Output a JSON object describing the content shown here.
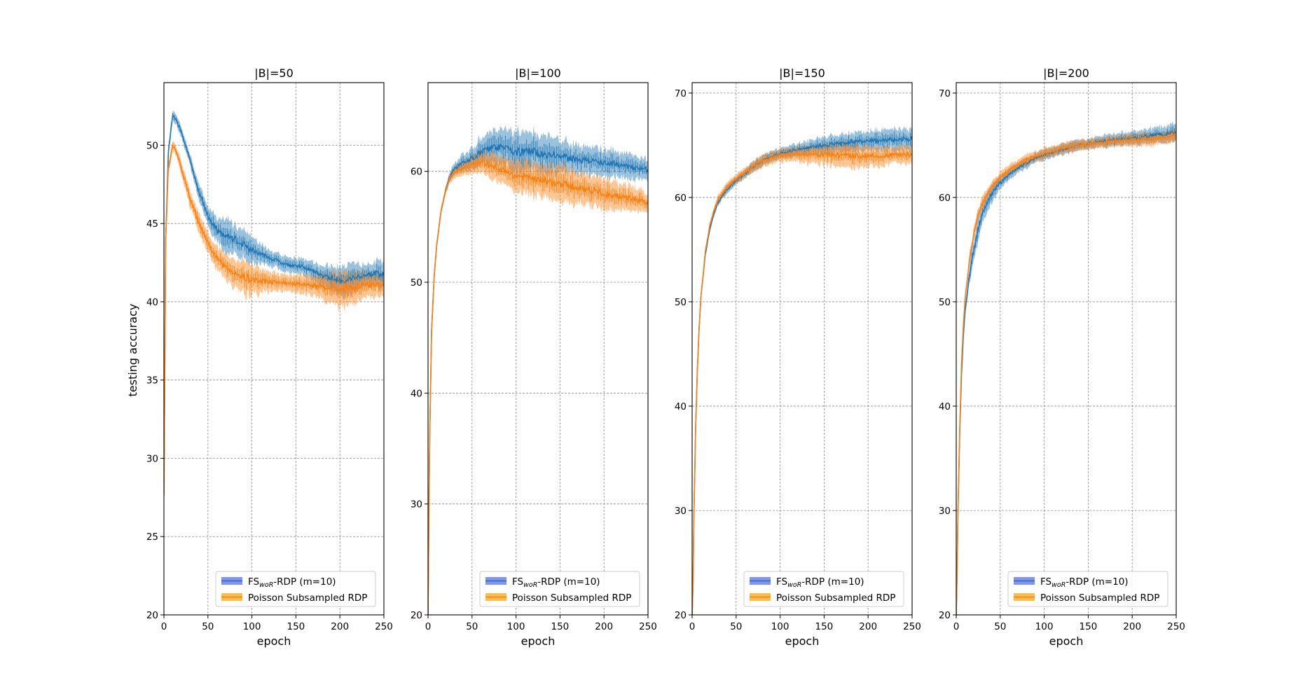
{
  "figure": {
    "ylabel": "testing accuracy",
    "xlabel": "epoch"
  },
  "series_styles": [
    {
      "name": "FSwoR-RDP (m=10)",
      "color": "#1f77b4",
      "legend_patch": "#6f7ff0"
    },
    {
      "name": "Poisson Subsampled RDP",
      "color": "#ff7f0e",
      "legend_patch": "#ffb02e"
    }
  ],
  "legend": {
    "fs_prefix": "FS",
    "fs_subscript": "woR",
    "fs_suffix": "-RDP (m=10)",
    "poisson": "Poisson Subsampled RDP",
    "location": "lower-right"
  },
  "chart_data": [
    {
      "type": "line",
      "title": "|B|=50",
      "xlabel": "epoch",
      "ylabel": "testing accuracy",
      "xlim": [
        0,
        250
      ],
      "ylim": [
        20,
        54
      ],
      "xticks": [
        0,
        50,
        100,
        150,
        200,
        250
      ],
      "yticks": [
        20,
        25,
        30,
        35,
        40,
        45,
        50
      ],
      "grid": true,
      "series": [
        {
          "name": "FSwoR-RDP (m=10)",
          "x": [
            0,
            2,
            5,
            10,
            15,
            20,
            30,
            40,
            50,
            60,
            70,
            80,
            90,
            100,
            120,
            140,
            160,
            180,
            200,
            220,
            240,
            250
          ],
          "y": [
            27.8,
            44,
            49.5,
            52,
            51.5,
            50.8,
            49,
            47,
            45.5,
            44.6,
            44.2,
            44,
            43.7,
            43.3,
            42.8,
            42.4,
            42.2,
            41.7,
            41.3,
            41.6,
            41.8,
            41.7
          ],
          "band": [
            0.3,
            0.4,
            0.4,
            0.3,
            0.3,
            0.3,
            0.4,
            0.5,
            0.6,
            0.8,
            1.0,
            1.0,
            0.9,
            0.8,
            0.5,
            0.5,
            0.5,
            0.6,
            1.0,
            0.8,
            0.8,
            0.8
          ]
        },
        {
          "name": "Poisson Subsampled RDP",
          "x": [
            0,
            2,
            5,
            10,
            15,
            20,
            30,
            40,
            50,
            60,
            70,
            80,
            90,
            100,
            120,
            140,
            160,
            180,
            200,
            220,
            240,
            250
          ],
          "y": [
            27.6,
            44,
            48.5,
            50,
            49.5,
            48.5,
            46.5,
            45,
            43.7,
            42.8,
            42.2,
            41.9,
            41.6,
            41.4,
            41.3,
            41.2,
            41.1,
            41.0,
            40.8,
            41.0,
            41.1,
            41.0
          ],
          "band": [
            0.3,
            0.4,
            0.4,
            0.3,
            0.3,
            0.4,
            0.5,
            0.6,
            0.6,
            0.7,
            0.8,
            0.9,
            1.1,
            1.0,
            0.6,
            0.5,
            0.6,
            0.8,
            1.1,
            0.9,
            0.8,
            0.8
          ]
        }
      ]
    },
    {
      "type": "line",
      "title": "|B|=100",
      "xlabel": "epoch",
      "ylabel": "",
      "xlim": [
        0,
        250
      ],
      "ylim": [
        20,
        68
      ],
      "xticks": [
        0,
        50,
        100,
        150,
        200,
        250
      ],
      "yticks": [
        20,
        30,
        40,
        50,
        60
      ],
      "grid": true,
      "series": [
        {
          "name": "FSwoR-RDP (m=10)",
          "x": [
            0,
            1,
            2,
            4,
            7,
            10,
            15,
            20,
            25,
            30,
            40,
            50,
            60,
            70,
            80,
            90,
            100,
            120,
            140,
            160,
            180,
            200,
            220,
            240,
            250
          ],
          "y": [
            20,
            29.5,
            36.5,
            45.5,
            50.5,
            53.5,
            56.5,
            58.3,
            59.5,
            60.2,
            60.8,
            61.2,
            61.7,
            62.1,
            62.2,
            62.0,
            61.8,
            61.7,
            61.5,
            61.2,
            61.0,
            60.8,
            60.6,
            60.3,
            60.1
          ],
          "band": [
            0,
            0.3,
            0.3,
            0.3,
            0.3,
            0.3,
            0.3,
            0.3,
            0.4,
            0.5,
            0.7,
            0.9,
            1.2,
            1.4,
            1.5,
            1.6,
            1.7,
            1.8,
            1.6,
            1.4,
            1.3,
            1.2,
            1.1,
            1.0,
            0.9
          ]
        },
        {
          "name": "Poisson Subsampled RDP",
          "x": [
            0,
            1,
            2,
            4,
            7,
            10,
            15,
            20,
            25,
            30,
            40,
            50,
            60,
            70,
            80,
            90,
            100,
            120,
            140,
            160,
            180,
            200,
            220,
            240,
            250
          ],
          "y": [
            20,
            29.5,
            36.5,
            45.5,
            50.5,
            53.5,
            56.5,
            58.3,
            59.4,
            59.9,
            60.3,
            60.6,
            60.8,
            60.6,
            60.3,
            59.9,
            59.6,
            59.3,
            59.0,
            58.7,
            58.4,
            58.0,
            57.7,
            57.4,
            57.2
          ],
          "band": [
            0,
            0.3,
            0.3,
            0.3,
            0.3,
            0.3,
            0.3,
            0.3,
            0.4,
            0.5,
            0.6,
            0.8,
            1.0,
            1.1,
            1.2,
            1.3,
            1.4,
            1.5,
            1.5,
            1.5,
            1.4,
            1.3,
            1.2,
            1.0,
            0.9
          ]
        }
      ]
    },
    {
      "type": "line",
      "title": "|B|=150",
      "xlabel": "epoch",
      "ylabel": "",
      "xlim": [
        0,
        250
      ],
      "ylim": [
        20,
        71
      ],
      "xticks": [
        0,
        50,
        100,
        150,
        200,
        250
      ],
      "yticks": [
        20,
        30,
        40,
        50,
        60,
        70
      ],
      "grid": true,
      "series": [
        {
          "name": "FSwoR-RDP (m=10)",
          "x": [
            0,
            1,
            2,
            4,
            6,
            8,
            10,
            15,
            20,
            25,
            30,
            40,
            50,
            60,
            70,
            80,
            90,
            100,
            120,
            140,
            160,
            180,
            200,
            220,
            240,
            250
          ],
          "y": [
            20,
            23,
            29.5,
            38,
            43.5,
            47.5,
            50.5,
            54.5,
            57.0,
            58.5,
            59.6,
            60.8,
            61.6,
            62.3,
            63.0,
            63.5,
            63.9,
            64.2,
            64.6,
            64.9,
            65.1,
            65.3,
            65.4,
            65.5,
            65.6,
            65.6
          ],
          "band": [
            0,
            0.3,
            0.3,
            0.3,
            0.3,
            0.3,
            0.3,
            0.3,
            0.3,
            0.3,
            0.3,
            0.4,
            0.4,
            0.4,
            0.5,
            0.5,
            0.5,
            0.5,
            0.6,
            0.7,
            0.8,
            0.9,
            0.9,
            1.0,
            1.0,
            1.0
          ]
        },
        {
          "name": "Poisson Subsampled RDP",
          "x": [
            0,
            1,
            2,
            4,
            6,
            8,
            10,
            15,
            20,
            25,
            30,
            40,
            50,
            60,
            70,
            80,
            90,
            100,
            120,
            140,
            160,
            180,
            200,
            220,
            240,
            250
          ],
          "y": [
            20,
            23,
            29.5,
            38,
            43.5,
            47.5,
            50.5,
            54.8,
            57.3,
            58.8,
            59.9,
            61.0,
            61.8,
            62.4,
            63.0,
            63.5,
            63.8,
            64.0,
            64.1,
            64.1,
            64.1,
            64.0,
            64.0,
            64.0,
            64.1,
            64.1
          ],
          "band": [
            0,
            0.3,
            0.3,
            0.3,
            0.3,
            0.3,
            0.3,
            0.3,
            0.3,
            0.3,
            0.4,
            0.4,
            0.4,
            0.5,
            0.5,
            0.6,
            0.6,
            0.6,
            0.7,
            0.9,
            1.0,
            1.1,
            1.0,
            0.9,
            0.8,
            0.8
          ]
        }
      ]
    },
    {
      "type": "line",
      "title": "|B|=200",
      "xlabel": "epoch",
      "ylabel": "",
      "xlim": [
        0,
        250
      ],
      "ylim": [
        20,
        71
      ],
      "xticks": [
        0,
        50,
        100,
        150,
        200,
        250
      ],
      "yticks": [
        20,
        30,
        40,
        50,
        60,
        70
      ],
      "grid": true,
      "series": [
        {
          "name": "FSwoR-RDP (m=10)",
          "x": [
            0,
            1,
            2,
            4,
            6,
            8,
            10,
            15,
            20,
            25,
            30,
            40,
            50,
            60,
            70,
            80,
            90,
            100,
            120,
            140,
            160,
            180,
            200,
            220,
            240,
            250
          ],
          "y": [
            20,
            24.5,
            30,
            37.5,
            43,
            46.5,
            49,
            52.5,
            55.0,
            57.0,
            58.5,
            60.3,
            61.4,
            62.2,
            62.8,
            63.3,
            63.8,
            64.1,
            64.6,
            65.0,
            65.3,
            65.5,
            65.7,
            65.9,
            66.1,
            66.2
          ],
          "band": [
            0,
            0.3,
            0.3,
            0.3,
            0.4,
            0.4,
            0.5,
            0.8,
            1.0,
            1.1,
            1.0,
            0.8,
            0.6,
            0.5,
            0.5,
            0.5,
            0.5,
            0.5,
            0.5,
            0.5,
            0.5,
            0.6,
            0.6,
            0.7,
            0.8,
            0.9
          ]
        },
        {
          "name": "Poisson Subsampled RDP",
          "x": [
            0,
            1,
            2,
            4,
            6,
            8,
            10,
            15,
            20,
            25,
            30,
            40,
            50,
            60,
            70,
            80,
            90,
            100,
            120,
            140,
            160,
            180,
            200,
            220,
            240,
            250
          ],
          "y": [
            20,
            24.5,
            30,
            38,
            44,
            47.5,
            50.2,
            54.0,
            56.5,
            58.3,
            59.5,
            61.0,
            61.9,
            62.6,
            63.1,
            63.6,
            63.9,
            64.2,
            64.7,
            65.0,
            65.2,
            65.4,
            65.5,
            65.6,
            65.8,
            65.9
          ],
          "band": [
            0,
            0.3,
            0.3,
            0.3,
            0.4,
            0.4,
            0.5,
            0.6,
            0.6,
            0.6,
            0.6,
            0.5,
            0.5,
            0.5,
            0.5,
            0.5,
            0.5,
            0.5,
            0.5,
            0.5,
            0.5,
            0.5,
            0.6,
            0.6,
            0.6,
            0.6
          ]
        }
      ]
    }
  ]
}
